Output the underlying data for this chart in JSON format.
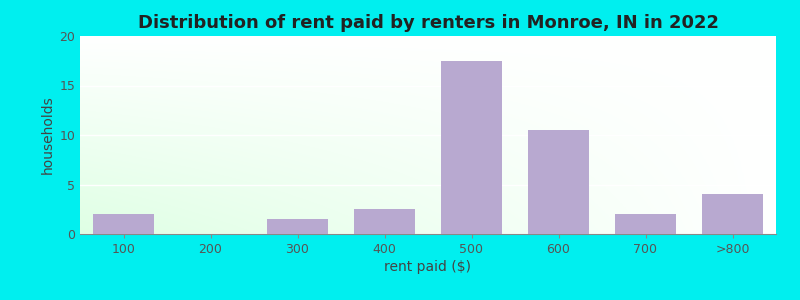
{
  "title": "Distribution of rent paid by renters in Monroe, IN in 2022",
  "xlabel": "rent paid ($)",
  "ylabel": "households",
  "categories": [
    "100",
    "200",
    "300",
    "400",
    "500",
    "600",
    "700",
    ">800"
  ],
  "values": [
    2,
    0,
    1.5,
    2.5,
    17.5,
    10.5,
    2,
    4
  ],
  "bar_color": "#b8a9d0",
  "ylim": [
    0,
    20
  ],
  "yticks": [
    0,
    5,
    10,
    15,
    20
  ],
  "background_outer": "#00efef",
  "grad_green": [
    0.82,
    1.0,
    0.85
  ],
  "grad_white": [
    1.0,
    1.0,
    1.0
  ],
  "title_fontsize": 13,
  "axis_label_fontsize": 10,
  "tick_fontsize": 9,
  "bar_width": 0.7,
  "figsize": [
    8.0,
    3.0
  ],
  "dpi": 100
}
